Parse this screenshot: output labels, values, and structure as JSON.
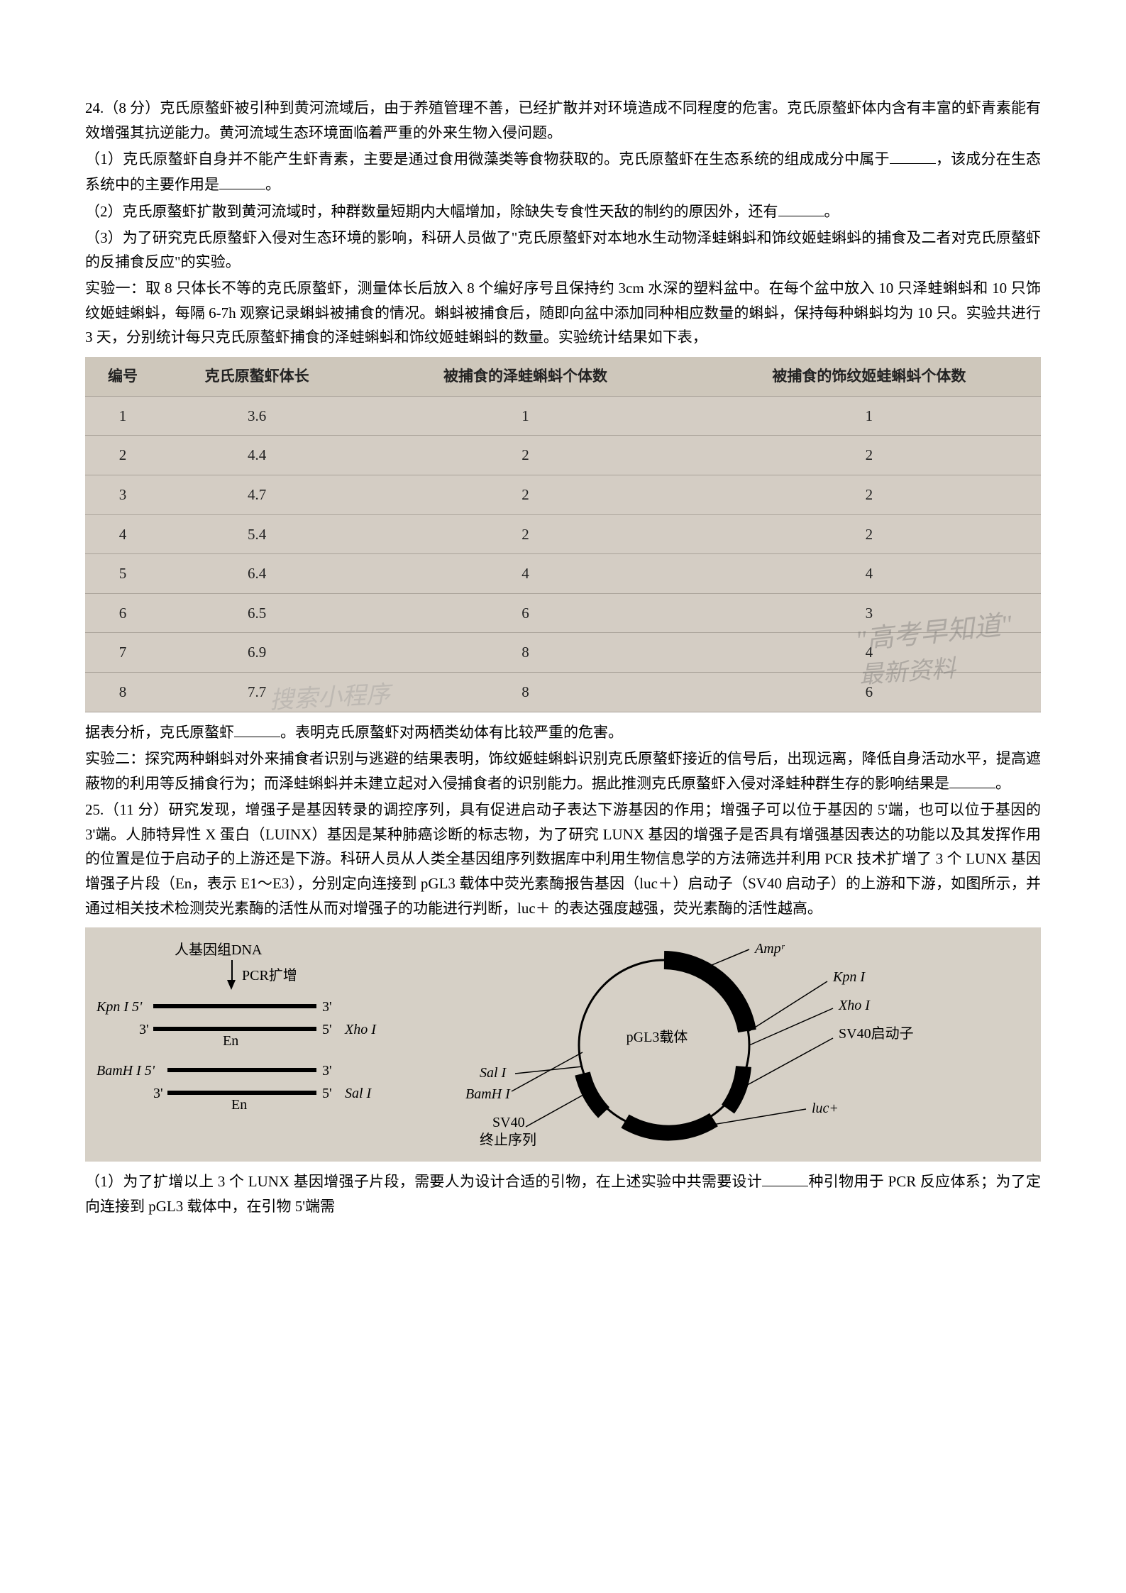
{
  "q24": {
    "header": "24.（8 分）克氏原螯虾被引种到黄河流域后，由于养殖管理不善，已经扩散并对环境造成不同程度的危害。克氏原螯虾体内含有丰富的虾青素能有效增强其抗逆能力。黄河流域生态环境面临着严重的外来生物入侵问题。",
    "p1a": "（1）克氏原螯虾自身并不能产生虾青素，主要是通过食用微藻类等食物获取的。克氏原螯虾在生态系统的组成成分中属于",
    "p1b": "，该成分在生态系统中的主要作用是",
    "p1c": "。",
    "p2a": "（2）克氏原螯虾扩散到黄河流域时，种群数量短期内大幅增加，除缺失专食性天敌的制约的原因外，还有",
    "p2b": "。",
    "p3": "（3）为了研究克氏原螯虾入侵对生态环境的影响，科研人员做了\"克氏原螯虾对本地水生动物泽蛙蝌蚪和饰纹姬蛙蝌蚪的捕食及二者对克氏原螯虾的反捕食反应\"的实验。",
    "exp1": "实验一：取 8 只体长不等的克氏原螯虾，测量体长后放入 8 个编好序号且保持约 3cm 水深的塑料盆中。在每个盆中放入 10 只泽蛙蝌蚪和 10 只饰纹姬蛙蝌蚪，每隔 6-7h 观察记录蝌蚪被捕食的情况。蝌蚪被捕食后，随即向盆中添加同种相应数量的蝌蚪，保持每种蝌蚪均为 10 只。实验共进行 3 天，分别统计每只克氏原螯虾捕食的泽蛙蝌蚪和饰纹姬蛙蝌蚪的数量。实验统计结果如下表，"
  },
  "table": {
    "headers": [
      "编号",
      "克氏原螯虾体长",
      "被捕食的泽蛙蝌蚪个体数",
      "被捕食的饰纹姬蛙蝌蚪个体数"
    ],
    "rows": [
      [
        "1",
        "3.6",
        "1",
        "1"
      ],
      [
        "2",
        "4.4",
        "2",
        "2"
      ],
      [
        "3",
        "4.7",
        "2",
        "2"
      ],
      [
        "4",
        "5.4",
        "2",
        "2"
      ],
      [
        "5",
        "6.4",
        "4",
        "4"
      ],
      [
        "6",
        "6.5",
        "6",
        "3"
      ],
      [
        "7",
        "6.9",
        "8",
        "4"
      ],
      [
        "8",
        "7.7",
        "8",
        "6"
      ]
    ],
    "header_bg": "#cec7bb",
    "row_bg": "#d4cdc4",
    "border_color": "#aaa39a"
  },
  "post_table": {
    "p1a": "据表分析，克氏原螯虾",
    "p1b": "。表明克氏原螯虾对两栖类幼体有比较严重的危害。",
    "exp2a": "实验二：探究两种蝌蚪对外来捕食者识别与逃避的结果表明，饰纹姬蛙蝌蚪识别克氏原螯虾接近的信号后，出现远离，降低自身活动水平，提高遮蔽物的利用等反捕食行为；而泽蛙蝌蚪并未建立起对入侵捕食者的识别能力。据此推测克氏原螯虾入侵对泽蛙种群生存的影响结果是",
    "exp2b": "。"
  },
  "q25": {
    "header": "25.（11 分）研究发现，增强子是基因转录的调控序列，具有促进启动子表达下游基因的作用；增强子可以位于基因的 5'端，也可以位于基因的 3'端。人肺特异性 X 蛋白（LUINX）基因是某种肺癌诊断的标志物，为了研究 LUNX 基因的增强子是否具有增强基因表达的功能以及其发挥作用的位置是位于启动子的上游还是下游。科研人员从人类全基因组序列数据库中利用生物信息学的方法筛选并利用 PCR 技术扩增了 3 个 LUNX 基因增强子片段（En，表示 E1～E3），分别定向连接到 pGL3 载体中荧光素酶报告基因（luc＋）启动子（SV40 启动子）的上游和下游，如图所示，并通过相关技术检测荧光素酶的活性从而对增强子的功能进行判断，luc＋ 的表达强度越强，荧光素酶的活性越高。"
  },
  "diagram": {
    "left": {
      "title": "人基因组DNA",
      "pcr": "PCR扩增",
      "labels": {
        "kpn": "Kpn I 5'",
        "three_prime": "3'",
        "five_prime": "5'",
        "xho": "Xho I",
        "bamh": "BamH I 5'",
        "sal": "Sal I",
        "en": "En"
      }
    },
    "right": {
      "plasmid_name": "pGL3载体",
      "labels": {
        "amp": "Ampʳ",
        "kpn": "Kpn I",
        "xho": "Xho I",
        "sv40_promoter": "SV40启动子",
        "luc": "luc+",
        "sv40_term": "SV40终止序列",
        "sal": "Sal I",
        "bamh": "BamH I"
      }
    },
    "background": "#d6d0c6"
  },
  "q25_sub": {
    "p1a": "（1）为了扩增以上 3 个 LUNX 基因增强子片段，需要人为设计合适的引物，在上述实验中共需要设计",
    "p1b": "种引物用于 PCR 反应体系；为了定向连接到 pGL3 载体中，在引物 5'端需"
  },
  "watermarks": {
    "w1": "\"高考早知道\"",
    "w2": "最新资料",
    "w3": "搜索小程序"
  }
}
